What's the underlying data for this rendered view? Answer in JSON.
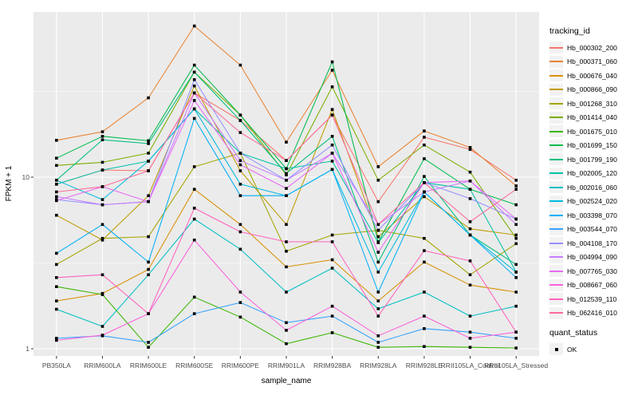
{
  "figure": {
    "y_axis": {
      "title": "FPKM + 1",
      "tick_labels": [
        "10",
        "1"
      ]
    },
    "x_axis": {
      "title": "sample_name"
    },
    "legend": {
      "tracking_title": "tracking_id",
      "quant_title": "quant_status",
      "quant_items": [
        {
          "label": "OK",
          "marker": "black-square"
        }
      ]
    },
    "colors": {
      "panel_bg": "#EBEBEB",
      "grid": "#FFFFFF",
      "tick_label": "#4D4D4D",
      "legend_key_bg": "#F2F2F2",
      "point": "#000000"
    }
  },
  "chart_data": {
    "type": "line",
    "title": "",
    "xlabel": "sample_name",
    "ylabel": "FPKM + 1",
    "y_scale": "log10",
    "ylim": [
      1,
      92
    ],
    "yticks": [
      10,
      1
    ],
    "y_minor_gridlines": [
      31.62,
      3.162
    ],
    "grid": true,
    "legend_position": "right",
    "legend_title": "tracking_id",
    "point_marker": "black square (quant_status = OK)",
    "categories": [
      "PB350LA",
      "RRIM600LA",
      "RRIM600LE",
      "RRIM600SE",
      "RRIM600PE",
      "RRIM901LA",
      "RRIM928BA",
      "RRIM928LA",
      "RRIM928LE",
      "RRII105LA_Control",
      "RRII105LA_Stressed"
    ],
    "series": [
      {
        "name": "Hb_000302_200",
        "color": "#F8766D",
        "values": [
          9.1,
          11.0,
          10.9,
          31.0,
          21.4,
          12.5,
          23.0,
          7.2,
          17.1,
          14.5,
          9.6
        ]
      },
      {
        "name": "Hb_000371_060",
        "color": "#EA8331",
        "values": [
          16.4,
          18.4,
          29.0,
          76.0,
          45.0,
          16.0,
          42.0,
          11.5,
          18.6,
          14.9,
          8.9
        ]
      },
      {
        "name": "Hb_000676_040",
        "color": "#D89000",
        "values": [
          1.9,
          2.1,
          2.9,
          8.5,
          5.3,
          3.0,
          3.3,
          1.9,
          3.2,
          2.35,
          2.14
        ]
      },
      {
        "name": "Hb_000866_090",
        "color": "#C09B00",
        "values": [
          6.0,
          4.3,
          7.8,
          34.0,
          10.9,
          5.3,
          24.8,
          4.5,
          7.7,
          5.0,
          4.6
        ]
      },
      {
        "name": "Hb_001268_310",
        "color": "#A3A500",
        "values": [
          3.1,
          4.4,
          4.5,
          11.5,
          13.8,
          3.7,
          4.6,
          4.9,
          4.4,
          2.7,
          4.1
        ]
      },
      {
        "name": "Hb_001414_040",
        "color": "#7CAE00",
        "values": [
          11.7,
          12.2,
          13.8,
          41.0,
          23.0,
          10.3,
          33.6,
          9.6,
          15.4,
          10.7,
          4.4
        ]
      },
      {
        "name": "Hb_001675_010",
        "color": "#39B600",
        "values": [
          2.3,
          2.07,
          1.02,
          2.0,
          1.53,
          1.07,
          1.24,
          1.02,
          1.03,
          1.02,
          1.01
        ]
      },
      {
        "name": "Hb_001699_150",
        "color": "#00BB4E",
        "values": [
          12.9,
          17.3,
          16.3,
          45.0,
          23.0,
          11.2,
          47.0,
          4.2,
          12.8,
          8.5,
          6.9
        ]
      },
      {
        "name": "Hb_001799_190",
        "color": "#00BF7D",
        "values": [
          9.6,
          16.5,
          15.7,
          41.0,
          21.4,
          10.5,
          17.3,
          3.2,
          10.1,
          4.6,
          3.1
        ]
      },
      {
        "name": "Hb_002005_120",
        "color": "#00C1A7",
        "values": [
          9.1,
          11.0,
          12.4,
          25.0,
          13.8,
          11.2,
          12.4,
          4.15,
          9.3,
          8.5,
          2.8
        ]
      },
      {
        "name": "Hb_002016_060",
        "color": "#00BFC4",
        "values": [
          1.7,
          1.35,
          2.7,
          5.7,
          3.8,
          2.14,
          2.95,
          1.71,
          2.14,
          1.55,
          1.77
        ]
      },
      {
        "name": "Hb_002524_020",
        "color": "#00BADE",
        "values": [
          9.6,
          7.4,
          12.4,
          25.0,
          9.1,
          7.8,
          11.1,
          2.8,
          8.2,
          4.6,
          2.8
        ]
      },
      {
        "name": "Hb_003398_070",
        "color": "#00B0F6",
        "values": [
          3.6,
          5.3,
          3.2,
          22.0,
          7.8,
          7.8,
          11.1,
          2.14,
          8.2,
          4.6,
          2.6
        ]
      },
      {
        "name": "Hb_003544_070",
        "color": "#35A2FF",
        "values": [
          1.15,
          1.19,
          1.09,
          1.6,
          1.86,
          1.42,
          1.55,
          1.09,
          1.31,
          1.25,
          1.15
        ]
      },
      {
        "name": "Hb_004108_170",
        "color": "#9590FF",
        "values": [
          7.4,
          6.9,
          7.2,
          37.0,
          13.8,
          9.6,
          15.4,
          4.9,
          9.3,
          7.5,
          5.7
        ]
      },
      {
        "name": "Hb_004994_090",
        "color": "#C77CFF",
        "values": [
          7.7,
          6.9,
          7.2,
          31.0,
          12.5,
          9.6,
          13.8,
          5.3,
          8.2,
          9.5,
          5.3
        ]
      },
      {
        "name": "Hb_007765_030",
        "color": "#E76BF3",
        "values": [
          7.3,
          8.8,
          7.2,
          28.0,
          11.8,
          8.6,
          13.8,
          3.65,
          9.3,
          9.5,
          5.7
        ]
      },
      {
        "name": "Hb_008667_060",
        "color": "#FA62DB",
        "values": [
          1.12,
          1.2,
          1.6,
          4.3,
          2.14,
          1.28,
          1.77,
          1.19,
          1.55,
          1.15,
          1.25
        ]
      },
      {
        "name": "Hb_012539_110",
        "color": "#FF62BC",
        "values": [
          2.6,
          2.7,
          1.6,
          6.6,
          4.8,
          4.2,
          4.2,
          1.55,
          3.73,
          3.25,
          1.25
        ]
      },
      {
        "name": "Hb_062416_010",
        "color": "#FF6A98",
        "values": [
          8.2,
          8.8,
          10.9,
          31.0,
          18.2,
          12.5,
          23.0,
          5.3,
          9.3,
          5.5,
          8.5
        ]
      }
    ]
  }
}
